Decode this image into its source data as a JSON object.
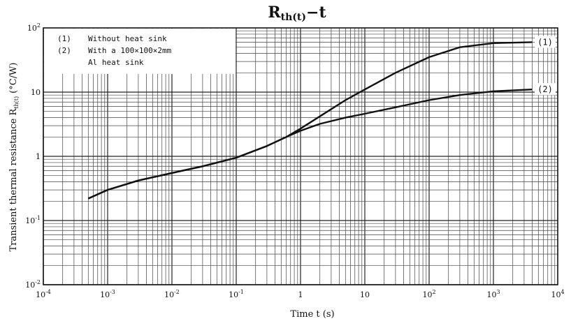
{
  "chart_data": {
    "type": "line",
    "title": "R",
    "title_sub": "th(t)",
    "title_suffix": "−t",
    "xlabel": "Time t (s)",
    "ylabel_main": "Transient thermal resistance R",
    "ylabel_sub": "th(t)",
    "ylabel_unit": "(°C/W)",
    "x_scale": "log",
    "y_scale": "log",
    "xlim": [
      0.0001,
      10000
    ],
    "ylim": [
      0.01,
      100
    ],
    "grid": true,
    "x_ticks": [
      {
        "value": 0.0001,
        "base": "10",
        "exp": "-4"
      },
      {
        "value": 0.001,
        "base": "10",
        "exp": "-3"
      },
      {
        "value": 0.01,
        "base": "10",
        "exp": "-2"
      },
      {
        "value": 0.1,
        "base": "10",
        "exp": "-1"
      },
      {
        "value": 1,
        "base": "1",
        "exp": ""
      },
      {
        "value": 10,
        "base": "10",
        "exp": ""
      },
      {
        "value": 100,
        "base": "10",
        "exp": "2"
      },
      {
        "value": 1000,
        "base": "10",
        "exp": "3"
      },
      {
        "value": 10000,
        "base": "10",
        "exp": "4"
      }
    ],
    "y_ticks": [
      {
        "value": 0.01,
        "base": "10",
        "exp": "-2"
      },
      {
        "value": 0.1,
        "base": "10",
        "exp": "-1"
      },
      {
        "value": 1,
        "base": "1",
        "exp": ""
      },
      {
        "value": 10,
        "base": "10",
        "exp": ""
      },
      {
        "value": 100,
        "base": "10",
        "exp": "2"
      }
    ],
    "legend": [
      {
        "num": "(1)",
        "text": "Without heat sink"
      },
      {
        "num": "(2)",
        "text": "With a 100×100×2mm"
      },
      {
        "num": "",
        "text": "Al heat sink"
      }
    ],
    "series": [
      {
        "label": "(1)",
        "x": [
          0.0005,
          0.001,
          0.003,
          0.01,
          0.03,
          0.1,
          0.3,
          0.6,
          1,
          2,
          5,
          10,
          30,
          100,
          300,
          1000,
          4000
        ],
        "y": [
          0.22,
          0.3,
          0.42,
          0.55,
          0.7,
          0.95,
          1.45,
          2.0,
          2.7,
          4.2,
          7.5,
          11,
          20,
          35,
          50,
          58,
          60
        ]
      },
      {
        "label": "(2)",
        "x": [
          0.0005,
          0.001,
          0.003,
          0.01,
          0.03,
          0.1,
          0.3,
          0.6,
          1,
          2,
          5,
          10,
          30,
          100,
          300,
          1000,
          4000
        ],
        "y": [
          0.22,
          0.3,
          0.42,
          0.55,
          0.7,
          0.95,
          1.45,
          2.0,
          2.5,
          3.2,
          4.0,
          4.6,
          5.8,
          7.5,
          9.0,
          10.3,
          11
        ]
      }
    ]
  }
}
